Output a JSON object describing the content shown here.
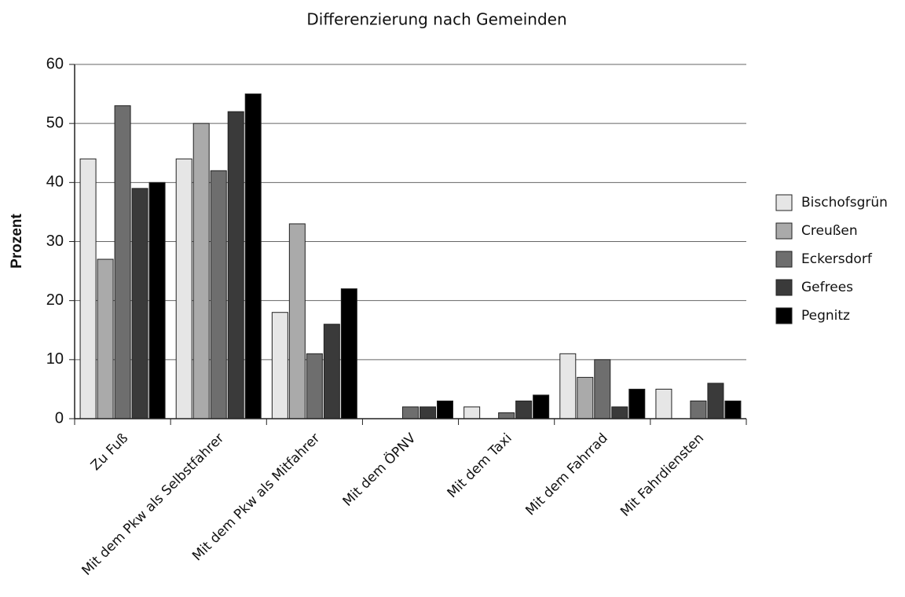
{
  "chart_data": {
    "type": "bar",
    "title": "Differenzierung nach Gemeinden",
    "ylabel": "Prozent",
    "categories": [
      "Zu Fuß",
      "Mit dem Pkw als Selbstfahrer",
      "Mit dem Pkw als Mitfahrer",
      "Mit dem ÖPNV",
      "Mit dem Taxi",
      "Mit dem Fahrrad",
      "Mit Fahrdiensten"
    ],
    "series": [
      {
        "name": "Bischofsgrün",
        "color": "#e6e6e6",
        "values": [
          44,
          44,
          18,
          0,
          2,
          11,
          5
        ]
      },
      {
        "name": "Creußen",
        "color": "#aaaaaa",
        "values": [
          27,
          50,
          33,
          0,
          0,
          7,
          0
        ]
      },
      {
        "name": "Eckersdorf",
        "color": "#6e6e6e",
        "values": [
          53,
          42,
          11,
          2,
          1,
          10,
          3
        ]
      },
      {
        "name": "Gefrees",
        "color": "#3a3a3a",
        "values": [
          39,
          52,
          16,
          2,
          3,
          2,
          6
        ]
      },
      {
        "name": "Pegnitz",
        "color": "#000000",
        "values": [
          40,
          55,
          22,
          3,
          4,
          5,
          3
        ]
      }
    ],
    "ylim": [
      0,
      60
    ],
    "yticks": [
      0,
      10,
      20,
      30,
      40,
      50,
      60
    ],
    "grid": true,
    "legend": "right"
  }
}
